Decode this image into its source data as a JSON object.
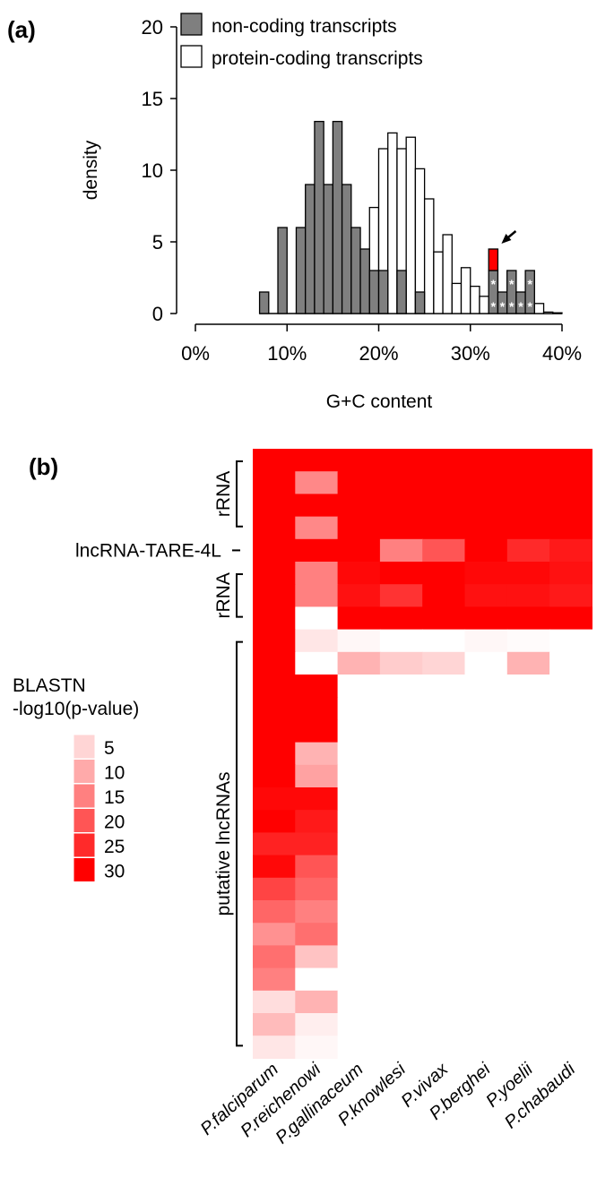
{
  "chart_data": [
    {
      "type": "bar",
      "panel_label": "(a)",
      "title": "",
      "xlabel": "G+C content",
      "ylabel": "density",
      "xlim": [
        0,
        40
      ],
      "ylim": [
        0,
        20
      ],
      "x_ticks": [
        "0%",
        "10%",
        "20%",
        "30%",
        "40%"
      ],
      "y_ticks": [
        "0",
        "5",
        "10",
        "15",
        "20"
      ],
      "bin_width_percent": 1,
      "legend": [
        "non-coding transcripts",
        "protein-coding transcripts"
      ],
      "legend_placement": "top",
      "series": [
        {
          "name": "protein-coding transcripts",
          "color": "#ffffff",
          "bins": [
            [
              19,
              7.4
            ],
            [
              20,
              11.5
            ],
            [
              21,
              12.6
            ],
            [
              22,
              11.5
            ],
            [
              23,
              12.3
            ],
            [
              24,
              10.1
            ],
            [
              25,
              8.0
            ],
            [
              26,
              4.3
            ],
            [
              27,
              5.5
            ],
            [
              28,
              2.1
            ],
            [
              29,
              3.2
            ],
            [
              30,
              1.9
            ],
            [
              31,
              1.2
            ],
            [
              37,
              0.7
            ],
            [
              38,
              0.1
            ],
            [
              39,
              0.05
            ]
          ]
        },
        {
          "name": "non-coding transcripts",
          "color": "#7f7f7f",
          "bins": [
            [
              7,
              1.5
            ],
            [
              8,
              0
            ],
            [
              9,
              6
            ],
            [
              10,
              0
            ],
            [
              11,
              6
            ],
            [
              12,
              9
            ],
            [
              13,
              13.4
            ],
            [
              14,
              9
            ],
            [
              15,
              13.4
            ],
            [
              16,
              9
            ],
            [
              17,
              6
            ],
            [
              18,
              4.5
            ],
            [
              19,
              3
            ],
            [
              20,
              3
            ],
            [
              21,
              0
            ],
            [
              22,
              3
            ],
            [
              23,
              0
            ],
            [
              24,
              1.5
            ],
            [
              32,
              3
            ],
            [
              33,
              1.5
            ],
            [
              34,
              3
            ],
            [
              35,
              1.5
            ],
            [
              36,
              3
            ]
          ]
        }
      ],
      "highlight": {
        "bin": 32,
        "base": 3,
        "height": 1.5,
        "color": "#ff0000",
        "annotation": "arrow"
      },
      "star_marks": [
        [
          32,
          1
        ],
        [
          32,
          2
        ],
        [
          33,
          1
        ],
        [
          34,
          1
        ],
        [
          34,
          2
        ],
        [
          35,
          1
        ],
        [
          36,
          1
        ],
        [
          36,
          2
        ]
      ],
      "star_symbol": "*"
    },
    {
      "type": "heatmap",
      "panel_label": "(b)",
      "columns": [
        "P.falciparum",
        "P.reichenowi",
        "P.gallinaceum",
        "P.knowlesi",
        "P.vivax",
        "P.berghei",
        "P.yoelii",
        "P.chabaudi"
      ],
      "row_groups": [
        {
          "label": "rRNA",
          "rows": [
            0,
            3
          ],
          "bracket": true
        },
        {
          "label": "lncRNA-TARE-4L",
          "rows": [
            4,
            4
          ],
          "bracket": false
        },
        {
          "label": "rRNA",
          "rows": [
            5,
            7
          ],
          "bracket": true
        },
        {
          "label": "putative lncRNAs",
          "rows": [
            8,
            26
          ],
          "bracket": true
        }
      ],
      "color_low": "#ffffff",
      "color_high": "#ff0000",
      "value_range": [
        0,
        30
      ],
      "legend_title": [
        "BLASTN",
        "-log10(p-value)"
      ],
      "legend_values": [
        "5",
        "10",
        "15",
        "20",
        "25",
        "30"
      ],
      "values": [
        [
          30,
          30,
          30,
          30,
          30,
          30,
          30,
          30
        ],
        [
          30,
          14,
          30,
          30,
          30,
          30,
          30,
          30
        ],
        [
          30,
          30,
          30,
          30,
          30,
          30,
          30,
          30
        ],
        [
          30,
          14,
          30,
          30,
          30,
          30,
          30,
          30
        ],
        [
          30,
          30,
          30,
          15,
          20,
          30,
          25,
          27
        ],
        [
          30,
          15,
          29,
          30,
          30,
          29,
          29,
          28
        ],
        [
          30,
          15,
          28,
          24,
          30,
          28,
          28,
          27
        ],
        [
          30,
          0,
          30,
          30,
          30,
          30,
          30,
          30
        ],
        [
          30,
          3,
          1,
          0,
          0,
          1,
          0.5,
          0
        ],
        [
          30,
          0,
          9,
          6,
          5,
          0,
          9,
          0
        ],
        [
          30,
          30,
          0,
          0,
          0,
          0,
          0,
          0
        ],
        [
          30,
          30,
          0,
          0,
          0,
          0,
          0,
          0
        ],
        [
          30,
          30,
          0,
          0,
          0,
          0,
          0,
          0
        ],
        [
          30,
          9,
          0,
          0,
          0,
          0,
          0,
          0
        ],
        [
          30,
          11,
          0,
          0,
          0,
          0,
          0,
          0
        ],
        [
          29,
          29,
          0,
          0,
          0,
          0,
          0,
          0
        ],
        [
          30,
          27,
          0,
          0,
          0,
          0,
          0,
          0
        ],
        [
          26,
          26,
          0,
          0,
          0,
          0,
          0,
          0
        ],
        [
          29,
          20,
          0,
          0,
          0,
          0,
          0,
          0
        ],
        [
          22,
          18,
          0,
          0,
          0,
          0,
          0,
          0
        ],
        [
          18,
          15,
          0,
          0,
          0,
          0,
          0,
          0
        ],
        [
          13,
          17,
          0,
          0,
          0,
          0,
          0,
          0
        ],
        [
          17,
          7,
          0,
          0,
          0,
          0,
          0,
          0
        ],
        [
          15,
          0,
          0,
          0,
          0,
          0,
          0,
          0
        ],
        [
          4,
          9,
          0,
          0,
          0,
          0,
          0,
          0
        ],
        [
          8,
          2,
          0,
          0,
          0,
          0,
          0,
          0
        ],
        [
          3,
          1,
          0,
          0,
          0,
          0,
          0,
          0
        ]
      ]
    }
  ]
}
